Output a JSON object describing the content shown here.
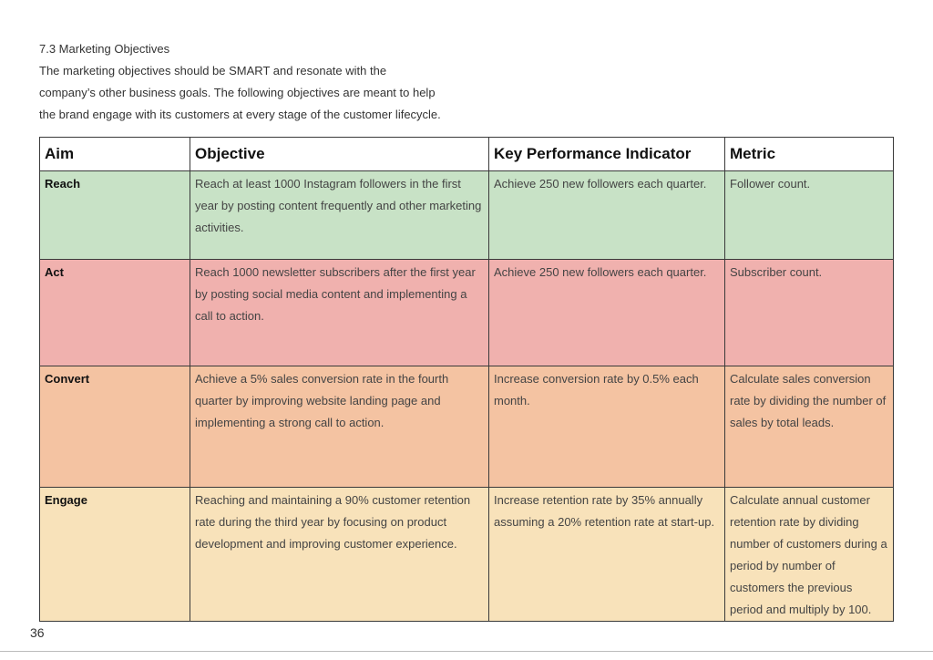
{
  "section": {
    "heading": "7.3 Marketing Objectives",
    "intro_lines": [
      "The marketing objectives should be SMART and resonate with the",
      "company’s other business goals. The following objectives are meant to help",
      "the brand engage with its customers at every stage of the customer lifecycle."
    ]
  },
  "table": {
    "headers": {
      "aim": "Aim",
      "objective": "Objective",
      "kpi": "Key Performance Indicator",
      "metric": "Metric"
    },
    "rows": [
      {
        "aim": "Reach",
        "objective": "Reach at least 1000 Instagram followers in the first year by posting content frequently and other marketing activities.",
        "kpi": "Achieve 250 new followers each quarter.",
        "metric": "Follower count.",
        "color": "#c8e2c6"
      },
      {
        "aim": "Act",
        "objective": "Reach 1000 newsletter subscribers after the first year by posting social media content and implementing a call to action.",
        "kpi": "Achieve 250 new followers each quarter.",
        "metric": "Subscriber count.",
        "color": "#f0b1ae"
      },
      {
        "aim": "Convert",
        "objective": "Achieve a 5% sales conversion rate in the fourth quarter by improving website landing page and implementing a strong call to action.",
        "kpi": "Increase conversion rate by 0.5% each month.",
        "metric": "Calculate sales conversion rate by dividing the number of sales by total leads.",
        "color": "#f4c3a2"
      },
      {
        "aim": "Engage",
        "objective": "Reaching and maintaining a 90% customer retention rate during the third year by focusing on product development and improving customer experience.",
        "kpi": "Increase retention rate by 35% annually assuming a 20% retention rate at start-up.",
        "metric": "Calculate annual customer retention rate by dividing number of customers during a period by number of customers the previous period and multiply by 100.",
        "color": "#f8e2ba"
      }
    ]
  },
  "footer": {
    "page_number": "36"
  }
}
